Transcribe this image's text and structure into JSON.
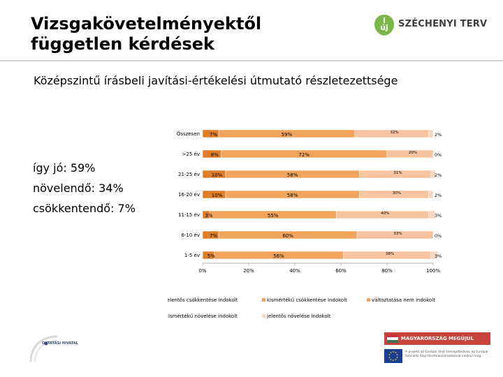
{
  "page": {
    "title_line1": "Vizsgakövetelményektől",
    "title_line2": "független kérdések",
    "subtitle": "Középszintű írásbeli javítási-értékelési útmutató részletezettsége",
    "logo_text": "SZÉCHENYI TERV",
    "logo_mark": "új",
    "summary": [
      "így jó: 59%",
      "növelendő: 34%",
      "csökkentendő: 7%"
    ],
    "footer_logo_text": "OKTATÁSI HIVATAL",
    "footer_banner": "MAGYARORSZÁG MEGÚJUL",
    "footer_eu_text": "A projekt az Európai Unió támogatásával, az Európai Szociális Alap társfinanszírozásával valósul meg."
  },
  "colors": {
    "green": "#7ab648",
    "logo_text": "#3f3f3f",
    "seg_1": "#e07e28",
    "seg_2": "#f2a45c",
    "seg_3": "#efa05a",
    "seg_4": "#f6c4a0",
    "seg_5": "#f9d6bf"
  },
  "chart_data": {
    "type": "bar",
    "orientation": "horizontal",
    "stacked": true,
    "categories": [
      "Összesen",
      ">25 év",
      "21-25 év",
      "16-20 év",
      "11-15 év",
      "6-10 év",
      "1-5 év"
    ],
    "series": [
      {
        "name": "jelentős csökkentése indokolt",
        "values": [
          7,
          8,
          10,
          10,
          3,
          7,
          5
        ]
      },
      {
        "name": "változtatása nem indokolt",
        "values": [
          59,
          72,
          58,
          58,
          55,
          60,
          56
        ]
      },
      {
        "name": "kismértékű csökkentése indokolt",
        "values": [
          0,
          0,
          0,
          0,
          0,
          0,
          0
        ]
      },
      {
        "name": "kismértékű növelése indokolt",
        "values": [
          32,
          20,
          31,
          30,
          40,
          33,
          38
        ]
      },
      {
        "name": "jelentős növelése indokolt",
        "values": [
          2,
          0,
          2,
          2,
          3,
          0,
          3
        ]
      }
    ],
    "labels": [
      [
        "7%",
        "59%",
        "32%",
        "2%"
      ],
      [
        "8%",
        "72%",
        "20%",
        "0%"
      ],
      [
        "10%",
        "58%",
        "31%",
        "2%"
      ],
      [
        "10%",
        "58%",
        "30%",
        "2%"
      ],
      [
        "3%",
        "55%",
        "40%",
        "3%"
      ],
      [
        "7%",
        "60%",
        "33%",
        "0%"
      ],
      [
        "5%",
        "56%",
        "38%",
        "3%"
      ]
    ],
    "x_ticks": [
      "0%",
      "20%",
      "40%",
      "60%",
      "80%",
      "100%"
    ],
    "xlim": [
      0,
      100
    ],
    "legend": [
      "jelentős csökkentése indokolt",
      "kismértékű csökkentése indokolt",
      "változtatása nem indokolt",
      "kismértékű növelése indokolt",
      "jelentős növelése indokolt"
    ],
    "legend_position": "bottom"
  }
}
